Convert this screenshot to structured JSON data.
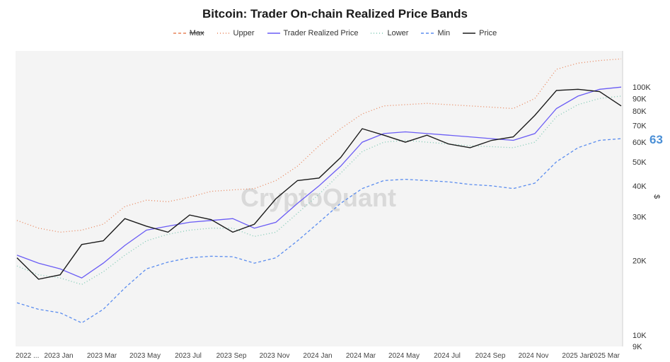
{
  "title": "Bitcoin: Trader On-chain Realized Price Bands",
  "badge": "63",
  "watermark": "CryptoQuant",
  "legend": [
    {
      "label": "Max",
      "color": "#e8845a",
      "dash": "4,3",
      "struck": true
    },
    {
      "label": "Upper",
      "color": "#e8845a",
      "dash": "1,3",
      "struck": false
    },
    {
      "label": "Trader Realized Price",
      "color": "#6a5cf5",
      "dash": "",
      "struck": false
    },
    {
      "label": "Lower",
      "color": "#7cc9b2",
      "dash": "1,3",
      "struck": false
    },
    {
      "label": "Min",
      "color": "#5b8def",
      "dash": "4,3",
      "struck": false
    },
    {
      "label": "Price",
      "color": "#1a1a1a",
      "dash": "",
      "struck": false
    }
  ],
  "chart_data": {
    "type": "line",
    "title": "Bitcoin: Trader On-chain Realized Price Bands",
    "ylabel": "$",
    "yscale": "log",
    "ylim": [
      9000,
      140000
    ],
    "x_tick_labels": [
      "2022 ...",
      "2023 Jan",
      "2023 Mar",
      "2023 May",
      "2023 Jul",
      "2023 Sep",
      "2023 Nov",
      "2024 Jan",
      "2024 Mar",
      "2024 May",
      "2024 Jul",
      "2024 Sep",
      "2024 Nov",
      "2025 Jan",
      "2025 Mar"
    ],
    "y_ticks": [
      {
        "label": "100K",
        "value": 100000
      },
      {
        "label": "90K",
        "value": 90000
      },
      {
        "label": "80K",
        "value": 80000
      },
      {
        "label": "70K",
        "value": 70000
      },
      {
        "label": "60K",
        "value": 60000
      },
      {
        "label": "50K",
        "value": 50000
      },
      {
        "label": "40K",
        "value": 40000
      },
      {
        "label": "30K",
        "value": 30000
      },
      {
        "label": "20K",
        "value": 20000
      },
      {
        "label": "10K",
        "value": 10000
      },
      {
        "label": "9K",
        "value": 9000
      }
    ],
    "x": [
      "2022-11",
      "2022-12",
      "2023-01",
      "2023-02",
      "2023-03",
      "2023-04",
      "2023-05",
      "2023-06",
      "2023-07",
      "2023-08",
      "2023-09",
      "2023-10",
      "2023-11",
      "2023-12",
      "2024-01",
      "2024-02",
      "2024-03",
      "2024-04",
      "2024-05",
      "2024-06",
      "2024-07",
      "2024-08",
      "2024-09",
      "2024-10",
      "2024-11",
      "2024-12",
      "2025-01",
      "2025-02",
      "2025-03"
    ],
    "series": [
      {
        "name": "Upper",
        "values": [
          29000,
          27000,
          26000,
          26500,
          28000,
          33000,
          35000,
          34500,
          36000,
          38000,
          38500,
          39000,
          42000,
          48000,
          58000,
          68000,
          78000,
          84000,
          85000,
          86000,
          85000,
          84000,
          83000,
          82000,
          90000,
          118000,
          125000,
          128000,
          130000
        ]
      },
      {
        "name": "Trader Realized Price",
        "values": [
          21000,
          19500,
          18500,
          17000,
          19500,
          23000,
          26500,
          27500,
          28500,
          29000,
          29500,
          27000,
          28500,
          34000,
          40000,
          48000,
          60000,
          65000,
          66000,
          65000,
          64000,
          63000,
          62000,
          61000,
          65000,
          82000,
          92000,
          98000,
          100000
        ]
      },
      {
        "name": "Lower",
        "values": [
          19000,
          17500,
          17000,
          16000,
          18000,
          21000,
          24000,
          25500,
          26500,
          27000,
          27000,
          25000,
          26000,
          31000,
          37000,
          45000,
          55000,
          60000,
          61000,
          60000,
          59000,
          58000,
          57500,
          57000,
          60000,
          76000,
          85000,
          90000,
          92000
        ]
      },
      {
        "name": "Min",
        "values": [
          13500,
          12700,
          12300,
          11200,
          12700,
          15500,
          18500,
          19700,
          20500,
          20800,
          20700,
          19500,
          20500,
          24000,
          28500,
          34000,
          39000,
          42000,
          42500,
          42000,
          41500,
          40500,
          40000,
          39000,
          41000,
          50000,
          57000,
          61000,
          62000
        ]
      },
      {
        "name": "Price",
        "values": [
          20500,
          16800,
          17500,
          23200,
          24000,
          29500,
          27500,
          26000,
          30500,
          29200,
          26000,
          28000,
          35500,
          42000,
          43000,
          52000,
          68000,
          64000,
          60000,
          64000,
          59000,
          57000,
          61000,
          63000,
          77000,
          97000,
          98000,
          96000,
          84000
        ]
      }
    ]
  }
}
